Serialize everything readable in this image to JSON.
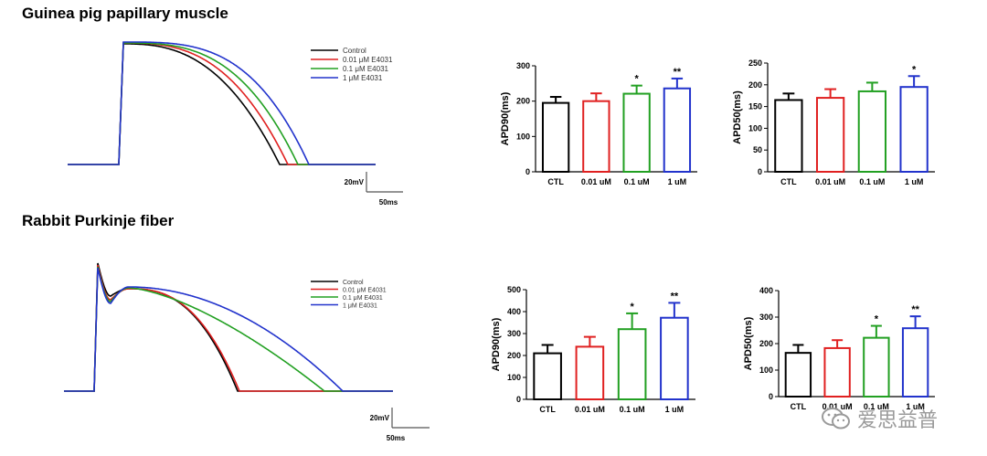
{
  "sections": [
    {
      "title": "Guinea pig papillary muscle"
    },
    {
      "title": "Rabbit Purkinje fiber"
    }
  ],
  "chart_data": [
    {
      "id": "gp-trace",
      "type": "line",
      "legend": [
        "Control",
        "0.01 μM E4031",
        "0.1 μM E4031",
        "1 μM E4031"
      ],
      "series_colors": [
        "#000000",
        "#e02020",
        "#22a022",
        "#2233cc"
      ],
      "apd90_ms": [
        195,
        200,
        220,
        235
      ],
      "scale_bar": {
        "voltage": "20mV",
        "time": "50ms"
      }
    },
    {
      "id": "gp-apd90",
      "type": "bar",
      "categories": [
        "CTL",
        "0.01 uM",
        "0.1 uM",
        "1 uM"
      ],
      "values": [
        195,
        200,
        221,
        236
      ],
      "errors": [
        17,
        22,
        23,
        28
      ],
      "significance": [
        "",
        "",
        "*",
        "**"
      ],
      "ylabel": "APD90(ms)",
      "ylim": [
        0,
        300
      ],
      "yticks": [
        0,
        100,
        200,
        300
      ],
      "colors": [
        "#000000",
        "#e02020",
        "#22a022",
        "#2233cc"
      ]
    },
    {
      "id": "gp-apd50",
      "type": "bar",
      "categories": [
        "CTL",
        "0.01 uM",
        "0.1 uM",
        "1 uM"
      ],
      "values": [
        165,
        170,
        185,
        195
      ],
      "errors": [
        15,
        20,
        20,
        25
      ],
      "significance": [
        "",
        "",
        "",
        "*"
      ],
      "ylabel": "APD50(ms)",
      "ylim": [
        0,
        250
      ],
      "yticks": [
        0,
        50,
        100,
        150,
        200,
        250
      ],
      "colors": [
        "#000000",
        "#e02020",
        "#22a022",
        "#2233cc"
      ]
    },
    {
      "id": "rb-trace",
      "type": "line",
      "legend": [
        "Control",
        "0.01 μM E4031",
        "0.1 μM E4031",
        "1 μM E4031"
      ],
      "series_colors": [
        "#000000",
        "#e02020",
        "#22a022",
        "#2233cc"
      ],
      "scale_bar": {
        "voltage": "20mV",
        "time": "50ms"
      }
    },
    {
      "id": "rb-apd90",
      "type": "bar",
      "categories": [
        "CTL",
        "0.01 uM",
        "0.1 uM",
        "1 uM"
      ],
      "values": [
        210,
        240,
        320,
        372
      ],
      "errors": [
        38,
        45,
        72,
        68
      ],
      "significance": [
        "",
        "",
        "*",
        "**"
      ],
      "ylabel": "APD90(ms)",
      "ylim": [
        0,
        500
      ],
      "yticks": [
        0,
        100,
        200,
        300,
        400,
        500
      ],
      "colors": [
        "#000000",
        "#e02020",
        "#22a022",
        "#2233cc"
      ]
    },
    {
      "id": "rb-apd50",
      "type": "bar",
      "categories": [
        "CTL",
        "0.01 uM",
        "0.1 uM",
        "1 uM"
      ],
      "values": [
        165,
        183,
        222,
        258
      ],
      "errors": [
        30,
        30,
        45,
        45
      ],
      "significance": [
        "",
        "",
        "*",
        "**"
      ],
      "ylabel": "APD50(ms)",
      "ylim": [
        0,
        400
      ],
      "yticks": [
        0,
        100,
        200,
        300,
        400
      ],
      "colors": [
        "#000000",
        "#e02020",
        "#22a022",
        "#2233cc"
      ]
    }
  ],
  "watermark": {
    "text": "爱思益普",
    "icon": "wechat-icon"
  }
}
